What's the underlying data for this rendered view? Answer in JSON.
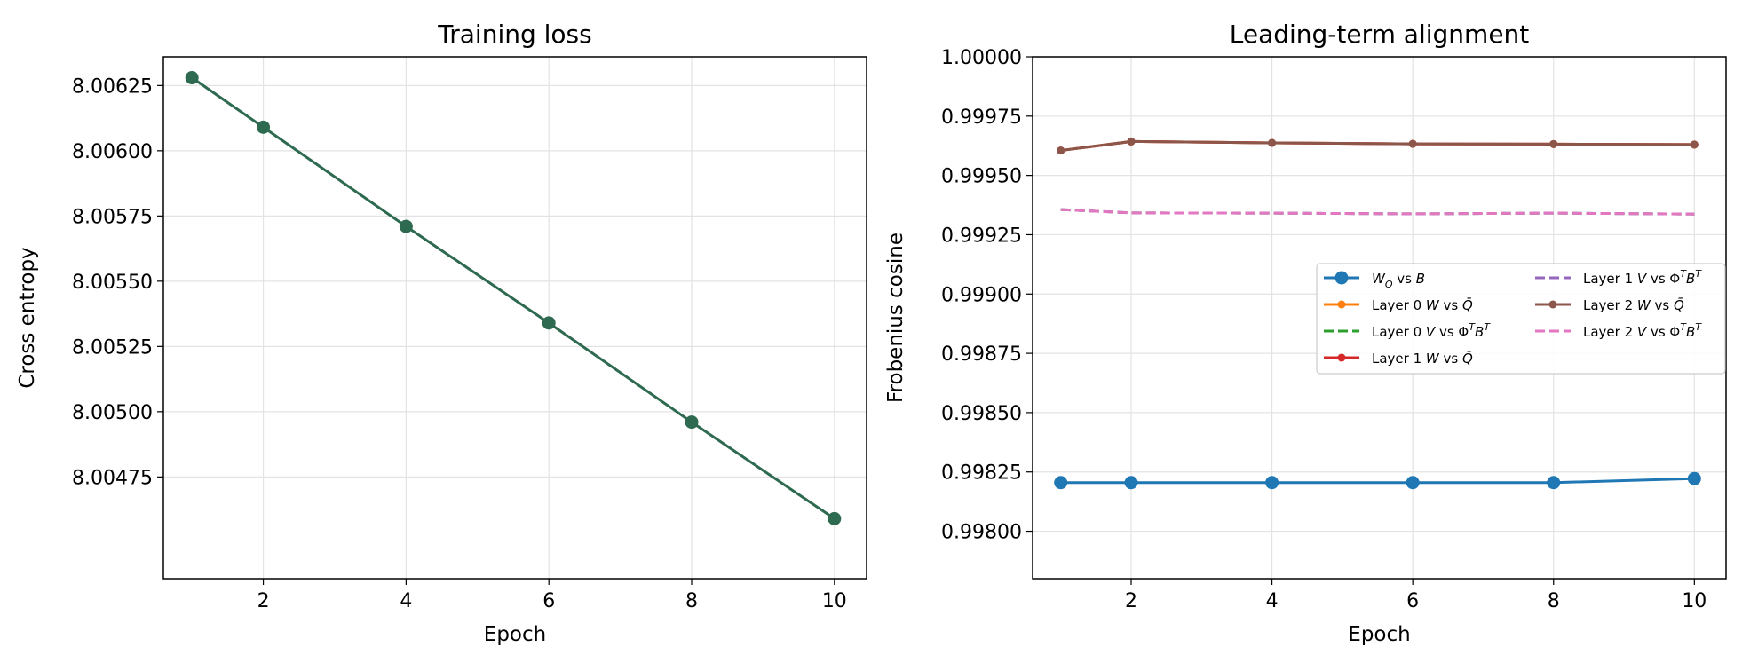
{
  "chart_data": [
    {
      "type": "line",
      "title": "Training loss",
      "xlabel": "Epoch",
      "ylabel": "Cross entropy",
      "xlim": [
        0.6,
        10.45
      ],
      "ylim": [
        8.00436,
        8.00636
      ],
      "xticks": [
        2,
        4,
        6,
        8,
        10
      ],
      "yticks": [
        8.00475,
        8.005,
        8.00525,
        8.0055,
        8.00575,
        8.006,
        8.00625
      ],
      "ytick_labels": [
        "8.00475",
        "8.00500",
        "8.00525",
        "8.00550",
        "8.00575",
        "8.00600",
        "8.00625"
      ],
      "grid": true,
      "series": [
        {
          "color": "#2d6a4f",
          "marker": "circle",
          "x": [
            1,
            2,
            4,
            6,
            8,
            10
          ],
          "y": [
            8.00628,
            8.00609,
            8.00571,
            8.00534,
            8.00496,
            8.00459
          ]
        }
      ]
    },
    {
      "type": "line",
      "title": "Leading-term alignment",
      "xlabel": "Epoch",
      "ylabel": "Frobenius cosine",
      "xlim": [
        0.6,
        10.45
      ],
      "ylim": [
        0.9978,
        1.0
      ],
      "xticks": [
        2,
        4,
        6,
        8,
        10
      ],
      "yticks": [
        0.998,
        0.99825,
        0.9985,
        0.99875,
        0.999,
        0.99925,
        0.9995,
        0.99975,
        1.0
      ],
      "ytick_labels": [
        "0.99800",
        "0.99825",
        "0.99850",
        "0.99875",
        "0.99900",
        "0.99925",
        "0.99950",
        "0.99975",
        "1.00000"
      ],
      "grid": true,
      "legend_position": "center-right",
      "series": [
        {
          "name": "W_O vs B",
          "color": "#1f77b4",
          "dash": "solid",
          "marker": "circle-large",
          "x": [
            1,
            2,
            4,
            6,
            8,
            10
          ],
          "y": [
            0.998205,
            0.998205,
            0.998205,
            0.998205,
            0.998205,
            0.998222
          ]
        },
        {
          "name": "Layer 0 W vs Q̄",
          "color": "#ff7f0e",
          "dash": "solid",
          "marker": "circle-small",
          "x": [
            1,
            2,
            4,
            6,
            8,
            10
          ],
          "y": [
            0.999605,
            0.999643,
            0.999637,
            0.999633,
            0.999632,
            0.99963
          ]
        },
        {
          "name": "Layer 0 V vs ΦᵀBᵀ",
          "color": "#2ca02c",
          "dash": "dashed",
          "marker": "none",
          "x": [
            1,
            2,
            4,
            6,
            8,
            10
          ],
          "y": [
            0.999356,
            0.999342,
            0.999341,
            0.999338,
            0.999341,
            0.999337
          ]
        },
        {
          "name": "Layer 1 W vs Q̄",
          "color": "#d62728",
          "dash": "solid",
          "marker": "circle-small",
          "x": [
            1,
            2,
            4,
            6,
            8,
            10
          ],
          "y": [
            0.999605,
            0.999643,
            0.999637,
            0.999633,
            0.999632,
            0.99963
          ]
        },
        {
          "name": "Layer 1 V vs ΦᵀBᵀ",
          "color": "#9467bd",
          "dash": "dashed",
          "marker": "none",
          "x": [
            1,
            2,
            4,
            6,
            8,
            10
          ],
          "y": [
            0.999356,
            0.999342,
            0.999341,
            0.999338,
            0.999341,
            0.999337
          ]
        },
        {
          "name": "Layer 2 W vs Q̄",
          "color": "#8c564b",
          "dash": "solid",
          "marker": "circle-small",
          "x": [
            1,
            2,
            4,
            6,
            8,
            10
          ],
          "y": [
            0.999605,
            0.999643,
            0.999637,
            0.999633,
            0.999632,
            0.99963
          ]
        },
        {
          "name": "Layer 2 V vs ΦᵀBᵀ",
          "color": "#e377c2",
          "dash": "dashed",
          "marker": "none",
          "x": [
            1,
            2,
            4,
            6,
            8,
            10
          ],
          "y": [
            0.999356,
            0.999342,
            0.999341,
            0.999338,
            0.999341,
            0.999337
          ]
        }
      ]
    }
  ]
}
